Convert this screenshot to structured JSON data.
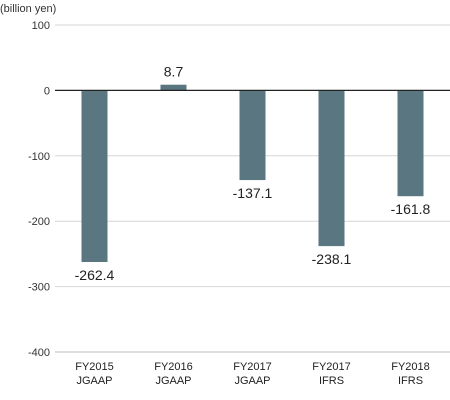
{
  "chart_data": {
    "type": "bar",
    "unit_label": "(billion yen)",
    "categories": [
      [
        "FY2015",
        "JGAAP"
      ],
      [
        "FY2016",
        "JGAAP"
      ],
      [
        "FY2017",
        "JGAAP"
      ],
      [
        "FY2017",
        "IFRS"
      ],
      [
        "FY2018",
        "IFRS"
      ]
    ],
    "values": [
      -262.4,
      8.7,
      -137.1,
      -238.1,
      -161.8
    ],
    "data_labels": [
      "-262.4",
      "8.7",
      "-137.1",
      "-238.1",
      "-161.8"
    ],
    "ylim": [
      -400,
      100
    ],
    "yticks": [
      100,
      0,
      -100,
      -200,
      -300,
      -400
    ],
    "ytick_labels": [
      "100",
      "0",
      "-100",
      "-200",
      "-300",
      "-400"
    ],
    "grid": true,
    "colors": {
      "bar": "#5a7680"
    }
  }
}
